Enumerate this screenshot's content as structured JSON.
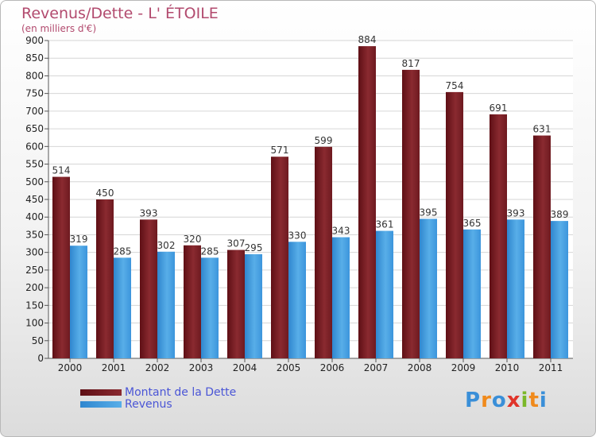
{
  "chart_data": {
    "type": "bar",
    "title": "Revenus/Dette - L' ÉTOILE",
    "subtitle": "(en milliers d'€)",
    "categories": [
      "2000",
      "2001",
      "2002",
      "2003",
      "2004",
      "2005",
      "2006",
      "2007",
      "2008",
      "2009",
      "2010",
      "2011"
    ],
    "series": [
      {
        "name": "Montant de la Dette",
        "color": "#7a1d24",
        "values": [
          514,
          450,
          393,
          320,
          307,
          571,
          599,
          884,
          817,
          754,
          691,
          631
        ]
      },
      {
        "name": "Revenus",
        "color": "#3d96dc",
        "values": [
          319,
          285,
          302,
          285,
          295,
          330,
          343,
          361,
          395,
          365,
          393,
          389
        ]
      }
    ],
    "ylim": [
      0,
      900
    ],
    "ytick_step": 50,
    "grid": true
  },
  "logo": {
    "text": "Proxiti",
    "letters": [
      "P",
      "r",
      "o",
      "x",
      "i",
      "t",
      "i"
    ],
    "colors": [
      "#3a8fd8",
      "#f08a1c",
      "#3a8fd8",
      "#e0342a",
      "#7bb829",
      "#f08a1c",
      "#3a8fd8"
    ]
  }
}
